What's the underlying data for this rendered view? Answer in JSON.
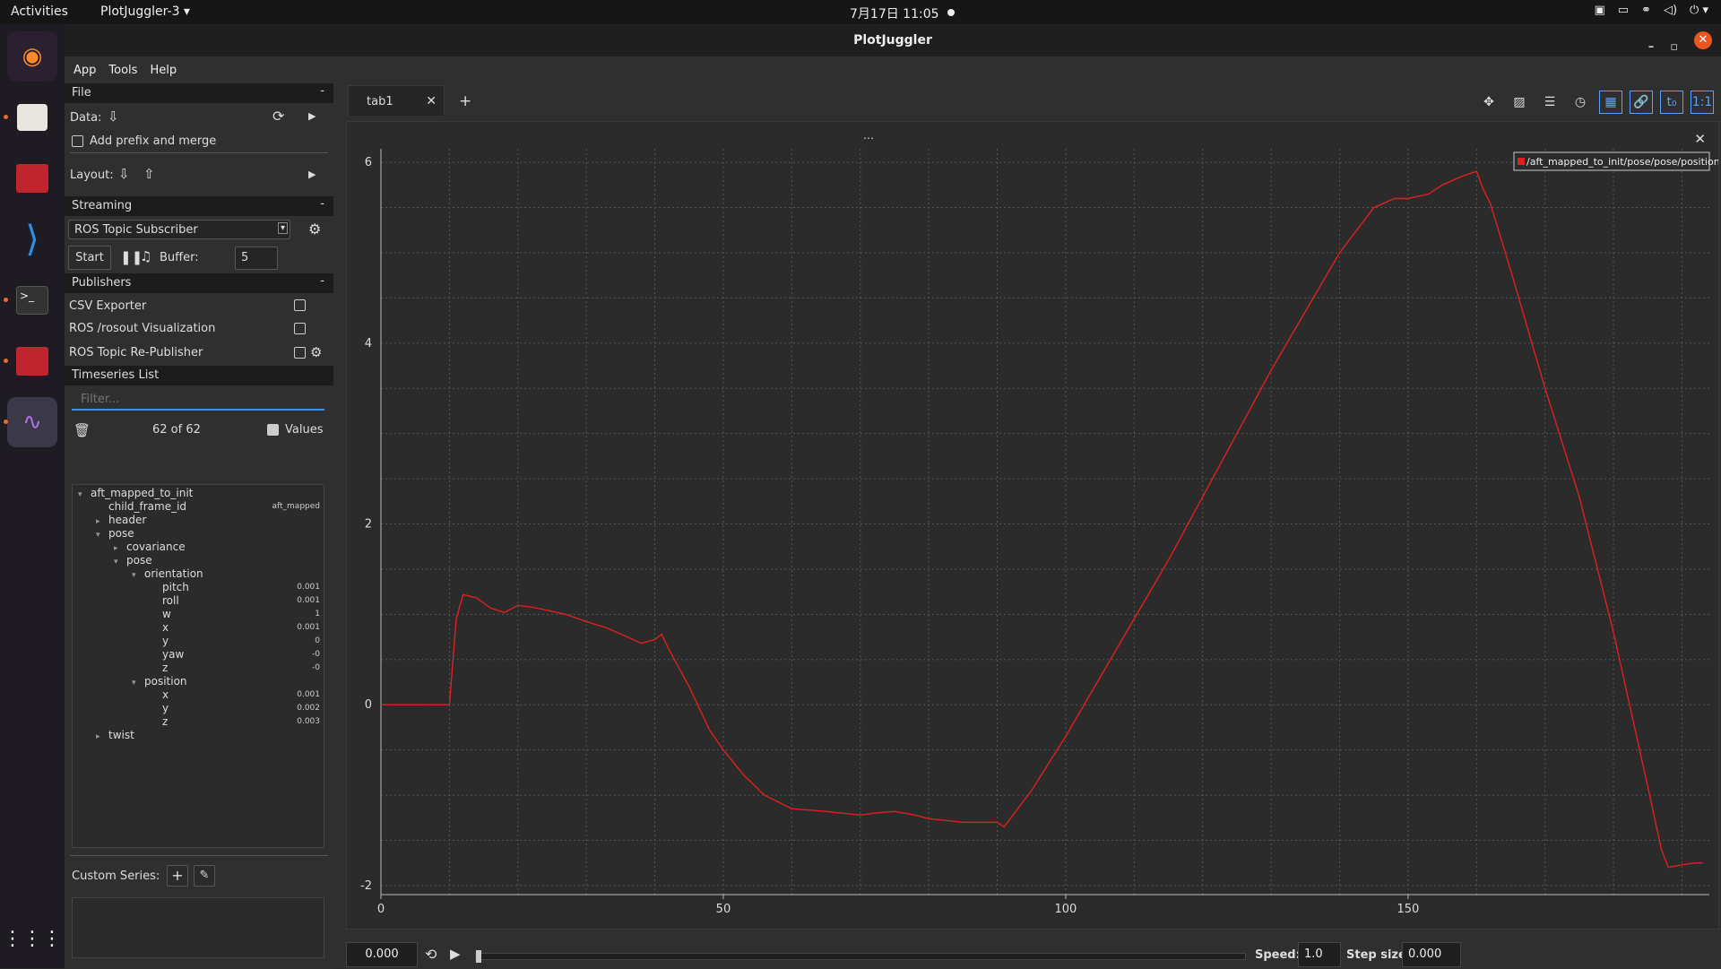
{
  "topbar": {
    "activities": "Activities",
    "app": "PlotJuggler-3 ▾",
    "clock": "7月17日 11:05"
  },
  "window": {
    "title": "PlotJuggler"
  },
  "menu": [
    "App",
    "Tools",
    "Help"
  ],
  "file": {
    "header": "File",
    "data_label": "Data:",
    "prefix_label": "Add prefix and merge",
    "layout_label": "Layout:"
  },
  "streaming": {
    "header": "Streaming",
    "source": "ROS Topic Subscriber",
    "start": "Start",
    "buffer_label": "Buffer:",
    "buffer_value": "5"
  },
  "publishers": {
    "header": "Publishers",
    "items": [
      "CSV Exporter",
      "ROS /rosout Visualization",
      "ROS Topic Re-Publisher"
    ]
  },
  "timeseries": {
    "header": "Timeseries List",
    "filter_placeholder": "Filter...",
    "count": "62 of 62",
    "values_label": "Values"
  },
  "tree": [
    {
      "label": "aft_mapped_to_init",
      "indent": 0,
      "arrow": "▾",
      "value": ""
    },
    {
      "label": "child_frame_id",
      "indent": 1,
      "arrow": "",
      "value": "aft_mapped"
    },
    {
      "label": "header",
      "indent": 1,
      "arrow": "▸",
      "value": ""
    },
    {
      "label": "pose",
      "indent": 1,
      "arrow": "▾",
      "value": ""
    },
    {
      "label": "covariance",
      "indent": 2,
      "arrow": "▸",
      "value": ""
    },
    {
      "label": "pose",
      "indent": 2,
      "arrow": "▾",
      "value": ""
    },
    {
      "label": "orientation",
      "indent": 3,
      "arrow": "▾",
      "value": ""
    },
    {
      "label": "pitch",
      "indent": 4,
      "arrow": "",
      "value": "0.001"
    },
    {
      "label": "roll",
      "indent": 4,
      "arrow": "",
      "value": "0.001"
    },
    {
      "label": "w",
      "indent": 4,
      "arrow": "",
      "value": "1"
    },
    {
      "label": "x",
      "indent": 4,
      "arrow": "",
      "value": "0.001"
    },
    {
      "label": "y",
      "indent": 4,
      "arrow": "",
      "value": "0"
    },
    {
      "label": "yaw",
      "indent": 4,
      "arrow": "",
      "value": "-0"
    },
    {
      "label": "z",
      "indent": 4,
      "arrow": "",
      "value": "-0"
    },
    {
      "label": "position",
      "indent": 3,
      "arrow": "▾",
      "value": ""
    },
    {
      "label": "x",
      "indent": 4,
      "arrow": "",
      "value": "0.001"
    },
    {
      "label": "y",
      "indent": 4,
      "arrow": "",
      "value": "0.002"
    },
    {
      "label": "z",
      "indent": 4,
      "arrow": "",
      "value": "0.003"
    },
    {
      "label": "twist",
      "indent": 1,
      "arrow": "▸",
      "value": ""
    }
  ],
  "custom": {
    "label": "Custom Series:"
  },
  "tabs": {
    "active": "tab1",
    "add": "+"
  },
  "playback": {
    "time": "0.000",
    "speed_label": "Speed:",
    "speed": "1.0",
    "step_label": "Step size:",
    "step": "0.000"
  },
  "chart_data": {
    "type": "line",
    "title": "",
    "xlabel": "",
    "ylabel": "",
    "xlim": [
      0,
      194
    ],
    "ylim": [
      -2.1,
      6.15
    ],
    "xticks": [
      0,
      50,
      100,
      150
    ],
    "yticks": [
      -2,
      0,
      2,
      4,
      6
    ],
    "grid": true,
    "legend_position": "top-right",
    "series": [
      {
        "name": "/aft_mapped_to_init/pose/pose/position/z",
        "color": "#e02020",
        "x": [
          0,
          10,
          11,
          12,
          14,
          16,
          18,
          20,
          22,
          24,
          27,
          30,
          33,
          36,
          38,
          40,
          41,
          42,
          45,
          48,
          50,
          53,
          56,
          60,
          65,
          70,
          72,
          75,
          78,
          80,
          85,
          88,
          90,
          91,
          92,
          95,
          100,
          105,
          110,
          115,
          120,
          125,
          130,
          135,
          140,
          145,
          148,
          150,
          153,
          155,
          158,
          160,
          161,
          162,
          165,
          170,
          175,
          180,
          185,
          187,
          188,
          190,
          192,
          193
        ],
        "y": [
          0,
          0,
          0.95,
          1.22,
          1.18,
          1.07,
          1.02,
          1.1,
          1.08,
          1.05,
          1.0,
          0.92,
          0.85,
          0.75,
          0.68,
          0.72,
          0.78,
          0.62,
          0.2,
          -0.28,
          -0.5,
          -0.78,
          -1.0,
          -1.15,
          -1.18,
          -1.22,
          -1.2,
          -1.18,
          -1.22,
          -1.26,
          -1.3,
          -1.3,
          -1.3,
          -1.35,
          -1.25,
          -0.95,
          -0.35,
          0.3,
          0.95,
          1.6,
          2.3,
          3.0,
          3.7,
          4.35,
          5.0,
          5.5,
          5.6,
          5.6,
          5.65,
          5.75,
          5.85,
          5.9,
          5.7,
          5.55,
          4.8,
          3.5,
          2.3,
          0.8,
          -0.9,
          -1.6,
          -1.8,
          -1.77,
          -1.75,
          -1.75
        ]
      }
    ]
  }
}
